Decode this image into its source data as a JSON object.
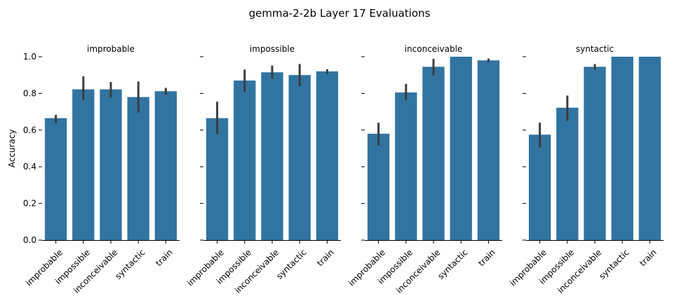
{
  "figure": {
    "suptitle": "gemma-2-2b Layer 17 Evaluations",
    "ylabel": "Accuracy",
    "bar_color": "#3274a1",
    "err_color": "#3c3c3c"
  },
  "chart_data": [
    {
      "type": "bar",
      "title": "improbable",
      "categories": [
        "improbable",
        "impossible",
        "inconceivable",
        "syntactic",
        "train"
      ],
      "values": [
        0.665,
        0.822,
        0.822,
        0.78,
        0.812
      ],
      "err_low": [
        0.638,
        0.762,
        0.778,
        0.695,
        0.793
      ],
      "err_high": [
        0.683,
        0.893,
        0.862,
        0.865,
        0.83
      ],
      "ylim": [
        0,
        1.0
      ],
      "yticks": [
        "0.0",
        "0.2",
        "0.4",
        "0.6",
        "0.8",
        "1.0"
      ]
    },
    {
      "type": "bar",
      "title": "impossible",
      "categories": [
        "improbable",
        "impossible",
        "inconceivable",
        "syntactic",
        "train"
      ],
      "values": [
        0.665,
        0.87,
        0.915,
        0.9,
        0.92
      ],
      "err_low": [
        0.578,
        0.808,
        0.88,
        0.84,
        0.905
      ],
      "err_high": [
        0.755,
        0.93,
        0.952,
        0.96,
        0.932
      ],
      "ylim": [
        0,
        1.0
      ],
      "yticks": [
        "0.0",
        "0.2",
        "0.4",
        "0.6",
        "0.8",
        "1.0"
      ]
    },
    {
      "type": "bar",
      "title": "inconceivable",
      "categories": [
        "improbable",
        "impossible",
        "inconceivable",
        "syntactic",
        "train"
      ],
      "values": [
        0.58,
        0.805,
        0.945,
        1.0,
        0.98
      ],
      "err_low": [
        0.515,
        0.762,
        0.898,
        1.0,
        0.97
      ],
      "err_high": [
        0.64,
        0.852,
        0.988,
        1.0,
        0.99
      ],
      "ylim": [
        0,
        1.0
      ],
      "yticks": [
        "0.0",
        "0.2",
        "0.4",
        "0.6",
        "0.8",
        "1.0"
      ]
    },
    {
      "type": "bar",
      "title": "syntactic",
      "categories": [
        "improbable",
        "impossible",
        "inconceivable",
        "syntactic",
        "train"
      ],
      "values": [
        0.575,
        0.722,
        0.945,
        1.0,
        1.0
      ],
      "err_low": [
        0.505,
        0.65,
        0.93,
        1.0,
        1.0
      ],
      "err_high": [
        0.64,
        0.788,
        0.96,
        1.0,
        1.0
      ],
      "ylim": [
        0,
        1.0
      ],
      "yticks": [
        "0.0",
        "0.2",
        "0.4",
        "0.6",
        "0.8",
        "1.0"
      ]
    }
  ]
}
